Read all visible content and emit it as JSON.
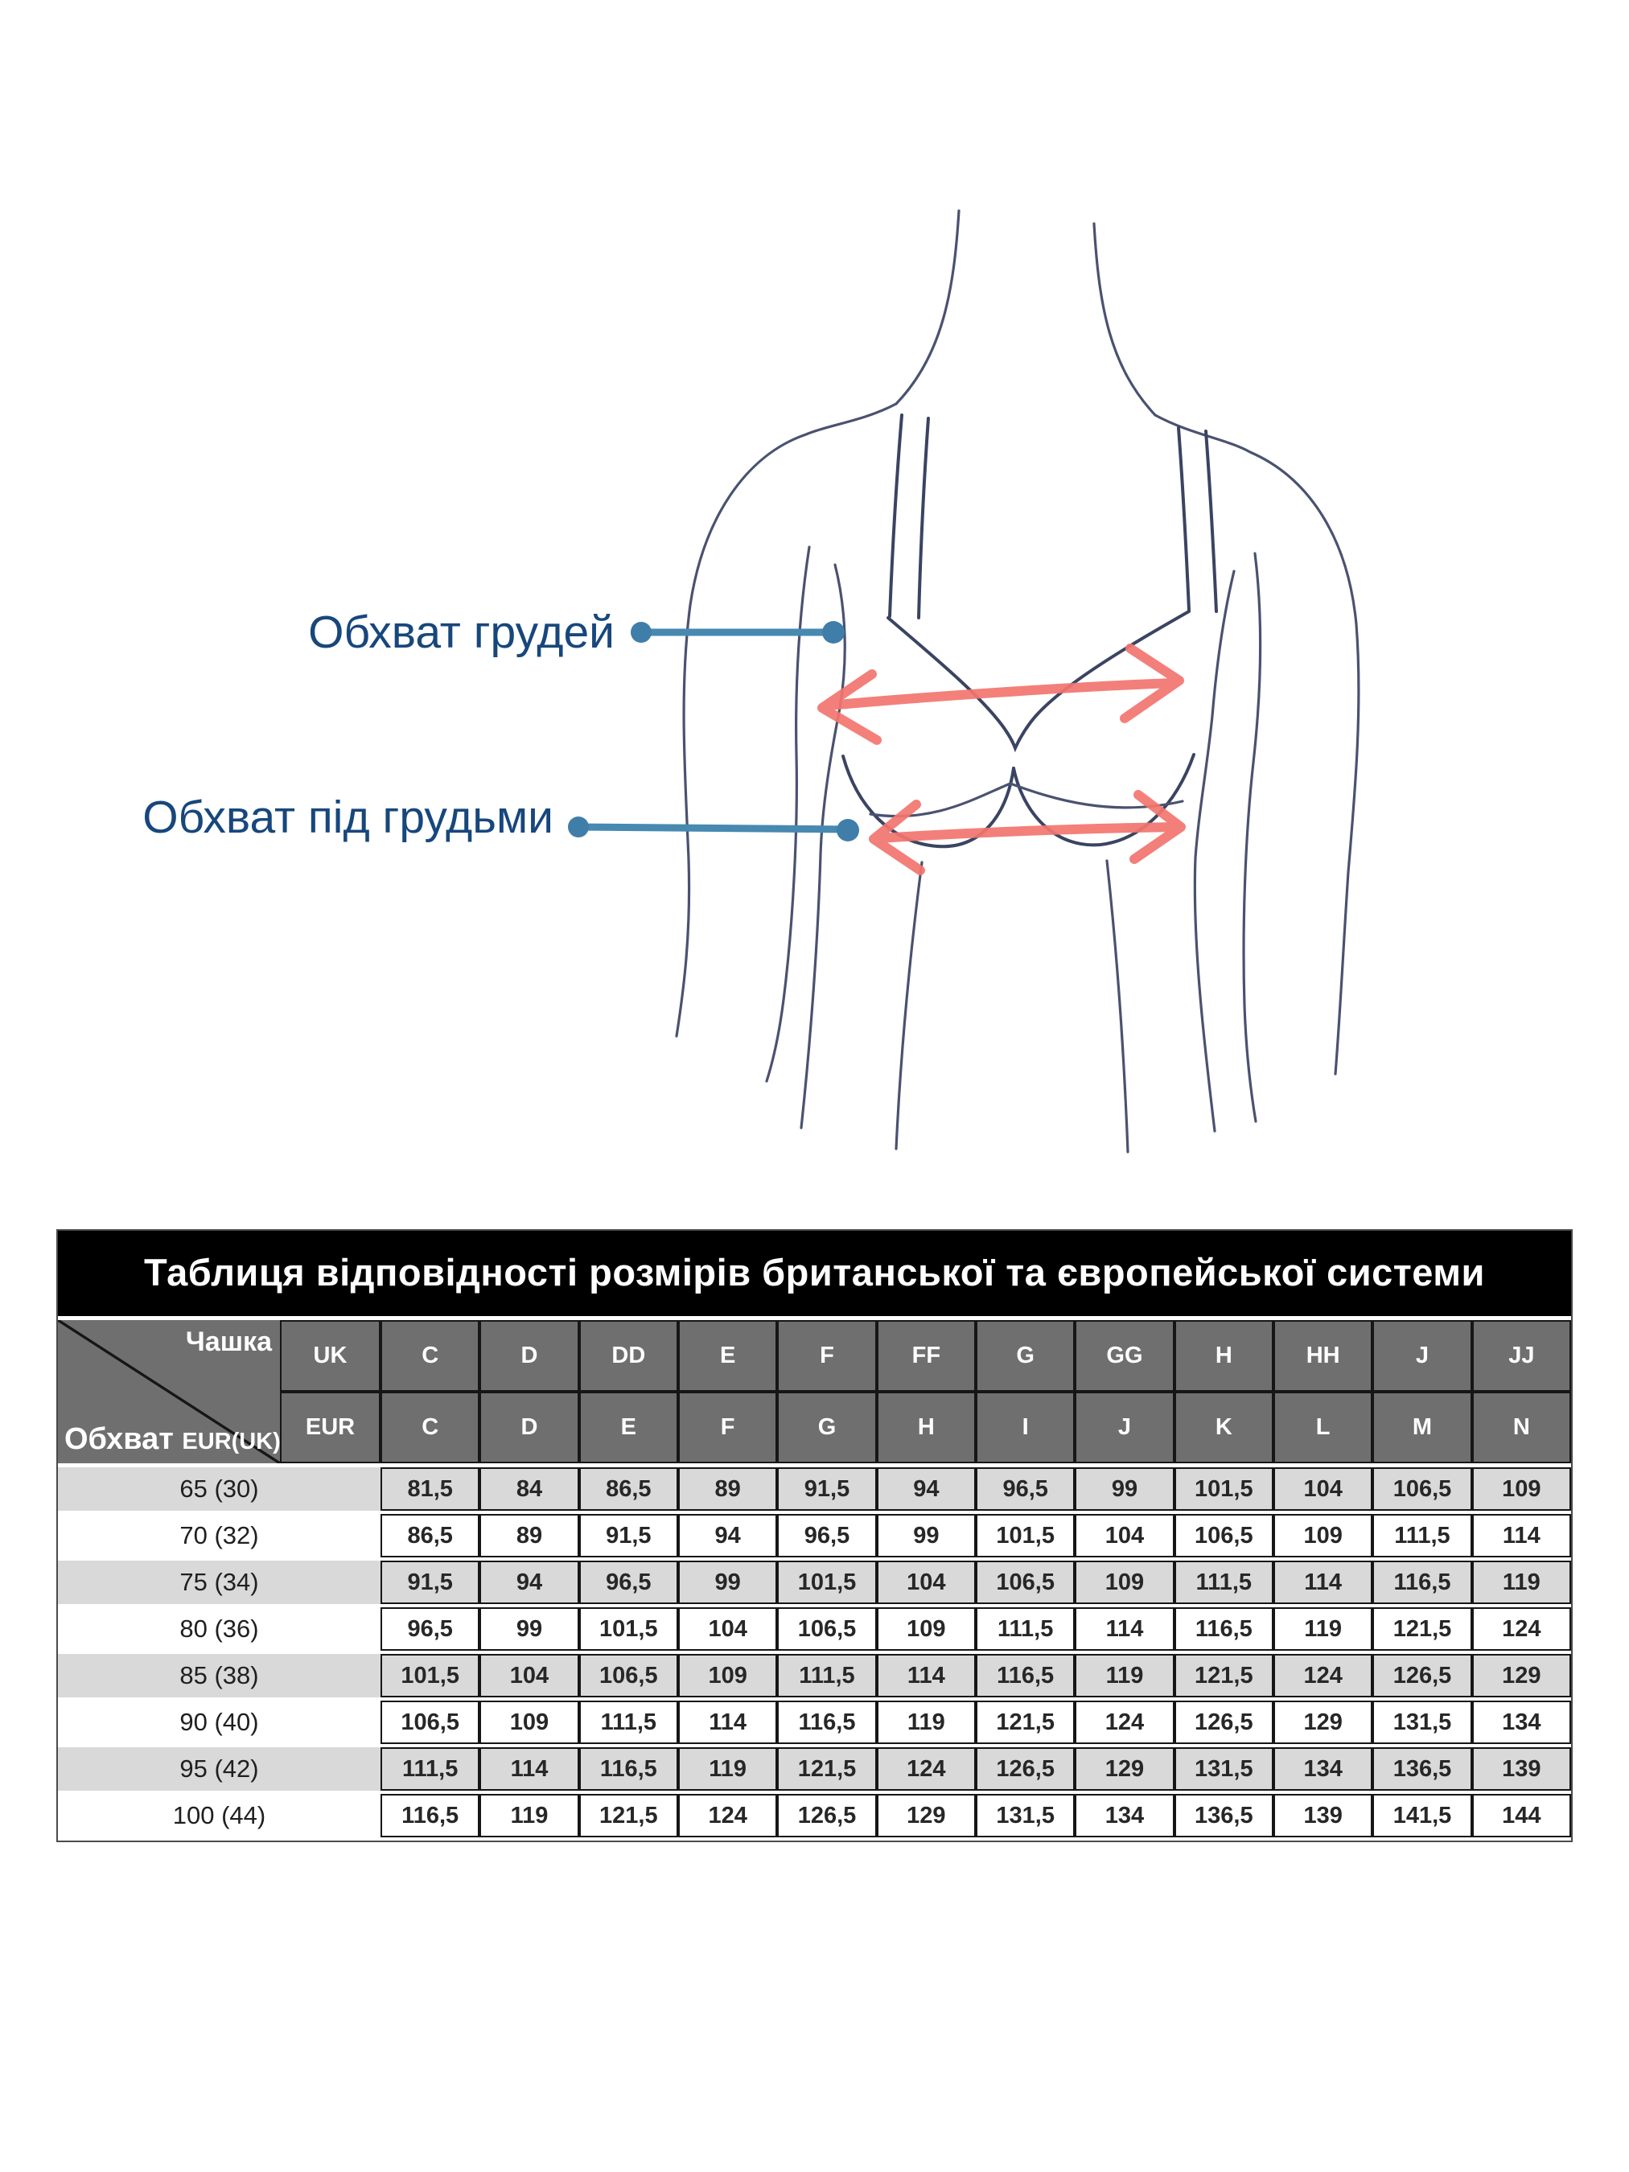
{
  "diagram": {
    "bust_label": "Обхват грудей",
    "underbust_label": "Обхват під грудьми",
    "colors": {
      "outline": "#434c6b",
      "bra_outline": "#3a4462",
      "arrow_red": "#f3756f",
      "pointer_blue": "#4789b0",
      "label_text": "#17477c"
    }
  },
  "table": {
    "title": "Таблиця відповідності розмірів британської та європейської системи",
    "corner": {
      "top_right": "Чашка",
      "bottom_left": "Обхват",
      "bottom_left_small": "EUR(UK)"
    },
    "uk_row_label": "UK",
    "eur_row_label": "EUR",
    "uk_cups": [
      "C",
      "D",
      "DD",
      "E",
      "F",
      "FF",
      "G",
      "GG",
      "H",
      "HH",
      "J",
      "JJ"
    ],
    "eur_cups": [
      "C",
      "D",
      "E",
      "F",
      "G",
      "H",
      "I",
      "J",
      "K",
      "L",
      "M",
      "N"
    ],
    "rows": [
      {
        "band": "65 (30)",
        "values": [
          "81,5",
          "84",
          "86,5",
          "89",
          "91,5",
          "94",
          "96,5",
          "99",
          "101,5",
          "104",
          "106,5",
          "109"
        ]
      },
      {
        "band": "70 (32)",
        "values": [
          "86,5",
          "89",
          "91,5",
          "94",
          "96,5",
          "99",
          "101,5",
          "104",
          "106,5",
          "109",
          "111,5",
          "114"
        ]
      },
      {
        "band": "75 (34)",
        "values": [
          "91,5",
          "94",
          "96,5",
          "99",
          "101,5",
          "104",
          "106,5",
          "109",
          "111,5",
          "114",
          "116,5",
          "119"
        ]
      },
      {
        "band": "80 (36)",
        "values": [
          "96,5",
          "99",
          "101,5",
          "104",
          "106,5",
          "109",
          "111,5",
          "114",
          "116,5",
          "119",
          "121,5",
          "124"
        ]
      },
      {
        "band": "85 (38)",
        "values": [
          "101,5",
          "104",
          "106,5",
          "109",
          "111,5",
          "114",
          "116,5",
          "119",
          "121,5",
          "124",
          "126,5",
          "129"
        ]
      },
      {
        "band": "90 (40)",
        "values": [
          "106,5",
          "109",
          "111,5",
          "114",
          "116,5",
          "119",
          "121,5",
          "124",
          "126,5",
          "129",
          "131,5",
          "134"
        ]
      },
      {
        "band": "95 (42)",
        "values": [
          "111,5",
          "114",
          "116,5",
          "119",
          "121,5",
          "124",
          "126,5",
          "129",
          "131,5",
          "134",
          "136,5",
          "139"
        ]
      },
      {
        "band": "100 (44)",
        "values": [
          "116,5",
          "119",
          "121,5",
          "124",
          "126,5",
          "129",
          "131,5",
          "134",
          "136,5",
          "139",
          "141,5",
          "144"
        ]
      }
    ],
    "colors": {
      "title_bg": "#000000",
      "header_bg": "#6f6f6f",
      "row_alt_bg": "#d9d9d9",
      "row_bg": "#ffffff",
      "border": "#161616"
    }
  }
}
